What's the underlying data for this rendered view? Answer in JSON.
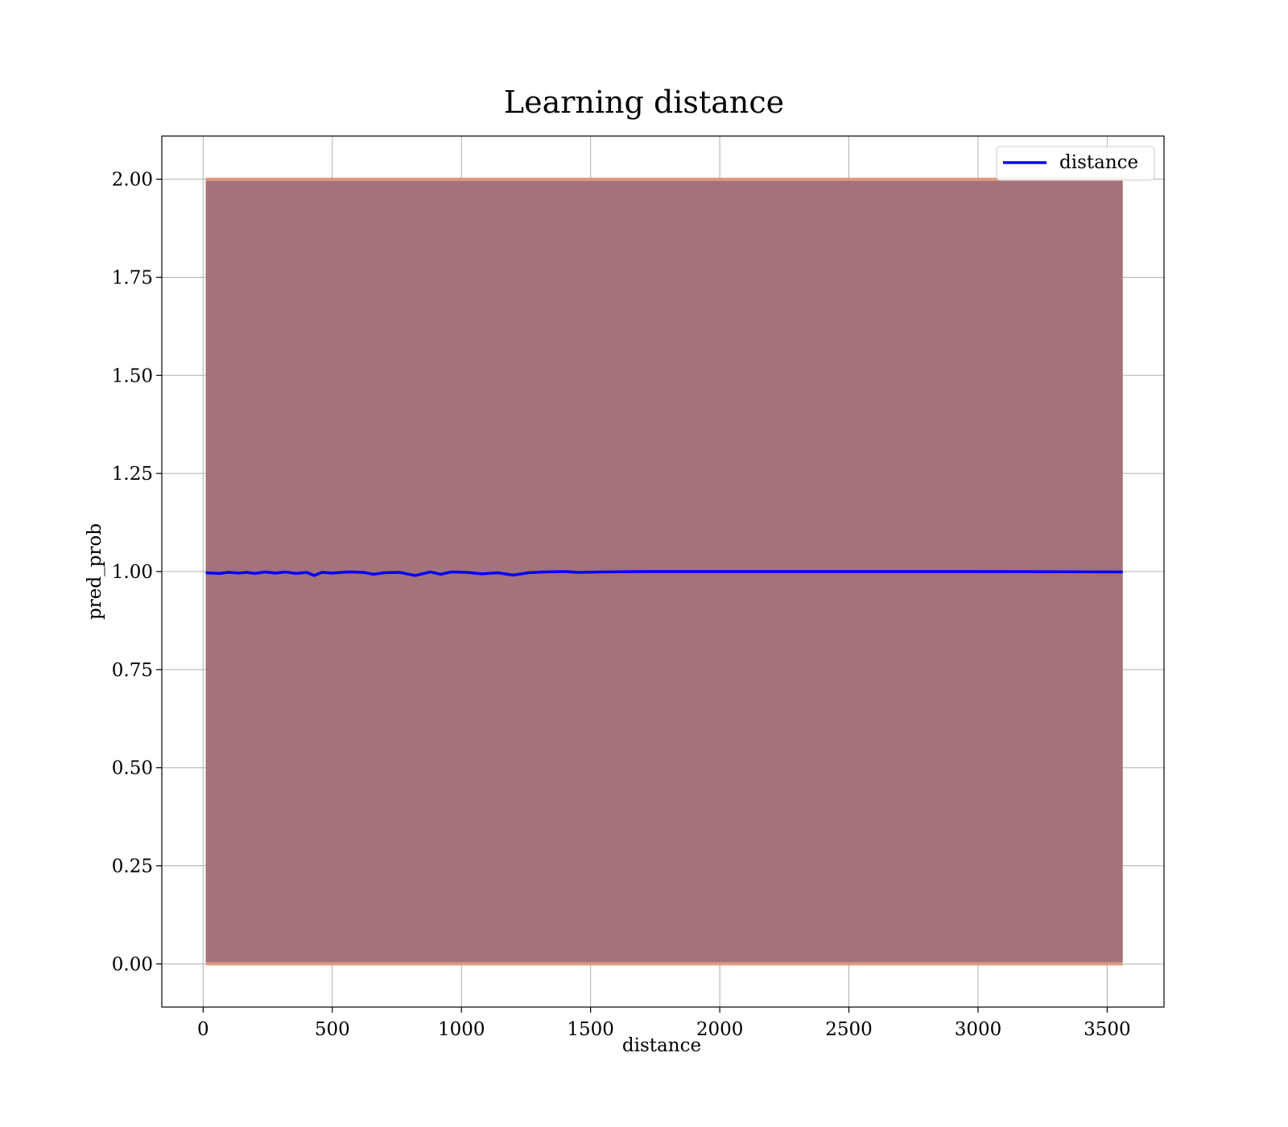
{
  "chart_data": {
    "type": "line",
    "title": "Learning distance",
    "xlabel": "distance",
    "ylabel": "pred_prob",
    "xlim": [
      -160,
      3720
    ],
    "ylim": [
      -0.11,
      2.11
    ],
    "xticks": [
      0,
      500,
      1000,
      1500,
      2000,
      2500,
      3000,
      3500
    ],
    "xtick_labels": [
      "0",
      "500",
      "1000",
      "1500",
      "2000",
      "2500",
      "3000",
      "3500"
    ],
    "yticks": [
      0,
      0.25,
      0.5,
      0.75,
      1.0,
      1.25,
      1.5,
      1.75,
      2.0
    ],
    "ytick_labels": [
      "0.00",
      "0.25",
      "0.50",
      "0.75",
      "1.00",
      "1.25",
      "1.50",
      "1.75",
      "2.00"
    ],
    "grid": true,
    "legend": {
      "position": "top-right",
      "entries": [
        "distance"
      ]
    },
    "series": [
      {
        "name": "distance",
        "color": "#0000ff",
        "x": [
          10,
          60,
          100,
          140,
          170,
          200,
          240,
          280,
          320,
          360,
          400,
          430,
          460,
          500,
          560,
          620,
          660,
          700,
          760,
          820,
          880,
          920,
          960,
          1020,
          1080,
          1140,
          1200,
          1260,
          1320,
          1400,
          1450,
          1550,
          1700,
          2000,
          2500,
          3000,
          3560
        ],
        "y": [
          0.997,
          0.995,
          0.998,
          0.996,
          0.998,
          0.995,
          0.999,
          0.996,
          0.999,
          0.995,
          0.998,
          0.99,
          0.998,
          0.996,
          0.999,
          0.998,
          0.993,
          0.997,
          0.998,
          0.99,
          0.999,
          0.993,
          0.999,
          0.998,
          0.994,
          0.997,
          0.991,
          0.997,
          0.999,
          1.0,
          0.998,
          0.999,
          1.0,
          1.0,
          1.0,
          1.0,
          0.999
        ]
      }
    ],
    "band": {
      "color_fill": "#a3727b",
      "color_edge": "#e0906e",
      "x": [
        10,
        3560
      ],
      "lower": 0,
      "upper": 2
    }
  }
}
